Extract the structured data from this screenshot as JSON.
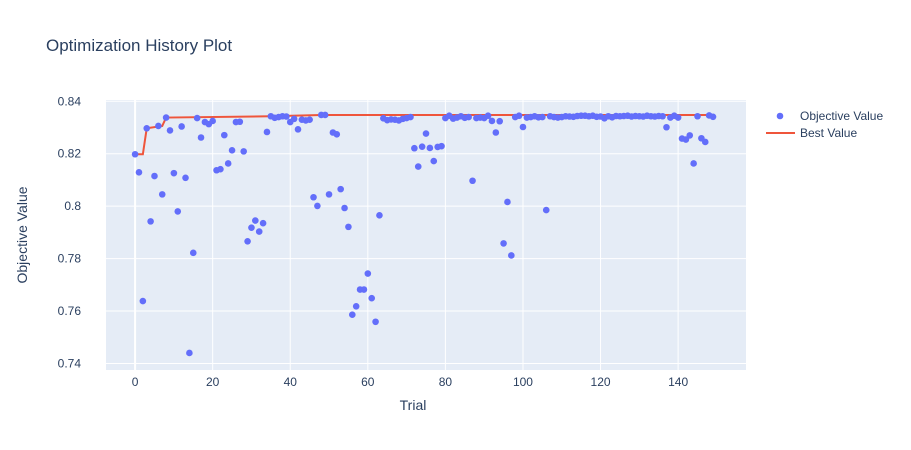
{
  "chart_data": {
    "type": "scatter",
    "title": "Optimization History Plot",
    "xlabel": "Trial",
    "ylabel": "Objective Value",
    "xlim": [
      -7.5,
      157.5
    ],
    "ylim": [
      0.7375,
      0.8405
    ],
    "x_ticks": [
      0,
      20,
      40,
      60,
      80,
      100,
      120,
      140
    ],
    "y_ticks": [
      0.74,
      0.76,
      0.78,
      0.8,
      0.82,
      0.84
    ],
    "y_tick_labels": [
      "0.74",
      "0.76",
      "0.78",
      "0.8",
      "0.82",
      "0.84"
    ],
    "grid": true,
    "legend_position": "top-right",
    "colors": {
      "objective": "#636efa",
      "best": "#ef553b",
      "plot_bg": "#e5ecf6"
    },
    "series": [
      {
        "name": "Objective Value",
        "kind": "markers",
        "x": [
          0,
          1,
          2,
          3,
          4,
          5,
          6,
          7,
          8,
          9,
          10,
          11,
          12,
          13,
          14,
          15,
          16,
          17,
          18,
          19,
          20,
          21,
          22,
          23,
          24,
          25,
          26,
          27,
          28,
          29,
          30,
          31,
          32,
          33,
          34,
          35,
          36,
          37,
          38,
          39,
          40,
          41,
          42,
          43,
          44,
          45,
          46,
          47,
          48,
          49,
          50,
          51,
          52,
          53,
          54,
          55,
          56,
          57,
          58,
          59,
          60,
          61,
          62,
          63,
          64,
          65,
          66,
          67,
          68,
          69,
          70,
          71,
          72,
          73,
          74,
          75,
          76,
          77,
          78,
          79,
          80,
          81,
          82,
          83,
          84,
          85,
          86,
          87,
          88,
          89,
          90,
          91,
          92,
          93,
          94,
          95,
          96,
          97,
          98,
          99,
          100,
          101,
          102,
          103,
          104,
          105,
          106,
          107,
          108,
          109,
          110,
          111,
          112,
          113,
          114,
          115,
          116,
          117,
          118,
          119,
          120,
          121,
          122,
          123,
          124,
          125,
          126,
          127,
          128,
          129,
          130,
          131,
          132,
          133,
          134,
          135,
          136,
          137,
          138,
          139,
          140,
          141,
          142,
          143,
          144,
          145,
          146,
          147,
          148,
          149
        ],
        "y": [
          0.8198,
          0.8129,
          0.7638,
          0.8297,
          0.7942,
          0.8115,
          0.8306,
          0.8045,
          0.8338,
          0.8289,
          0.8126,
          0.798,
          0.8304,
          0.8108,
          0.744,
          0.7822,
          0.8336,
          0.8262,
          0.8321,
          0.8313,
          0.8325,
          0.8137,
          0.8141,
          0.8271,
          0.8163,
          0.8213,
          0.8321,
          0.8322,
          0.8209,
          0.7866,
          0.7918,
          0.7945,
          0.7903,
          0.7935,
          0.8283,
          0.8343,
          0.8337,
          0.834,
          0.8343,
          0.8342,
          0.8321,
          0.8333,
          0.8293,
          0.833,
          0.8327,
          0.833,
          0.8034,
          0.8001,
          0.8348,
          0.8348,
          0.8045,
          0.8281,
          0.8274,
          0.8065,
          0.7993,
          0.7921,
          0.7586,
          0.7618,
          0.7682,
          0.7682,
          0.7743,
          0.7649,
          0.7559,
          0.7965,
          0.8335,
          0.8328,
          0.8331,
          0.833,
          0.8327,
          0.8333,
          0.8336,
          0.834,
          0.8221,
          0.8151,
          0.8227,
          0.8277,
          0.8222,
          0.8172,
          0.8226,
          0.8229,
          0.8336,
          0.8345,
          0.8334,
          0.8338,
          0.8343,
          0.8337,
          0.834,
          0.8097,
          0.8336,
          0.8338,
          0.8336,
          0.8345,
          0.8325,
          0.8281,
          0.8324,
          0.7858,
          0.8016,
          0.7812,
          0.834,
          0.8345,
          0.8302,
          0.8338,
          0.834,
          0.8343,
          0.8339,
          0.834,
          0.7985,
          0.8343,
          0.834,
          0.8338,
          0.834,
          0.8343,
          0.8342,
          0.8341,
          0.8344,
          0.8345,
          0.8345,
          0.8343,
          0.8345,
          0.8341,
          0.8342,
          0.8335,
          0.8343,
          0.8339,
          0.8344,
          0.8343,
          0.8344,
          0.8345,
          0.8342,
          0.8344,
          0.8343,
          0.8342,
          0.8345,
          0.8343,
          0.8342,
          0.8344,
          0.8343,
          0.8301,
          0.8338,
          0.8345,
          0.8338,
          0.8258,
          0.8254,
          0.827,
          0.8163,
          0.8343,
          0.8259,
          0.8245,
          0.8346,
          0.8341
        ]
      },
      {
        "name": "Best Value",
        "kind": "line",
        "x": [
          0,
          2,
          3,
          7,
          8,
          35,
          48,
          140,
          148,
          149
        ],
        "y": [
          0.8198,
          0.8198,
          0.8297,
          0.8306,
          0.8338,
          0.8343,
          0.8348,
          0.8348,
          0.8348,
          0.8348
        ]
      }
    ]
  }
}
